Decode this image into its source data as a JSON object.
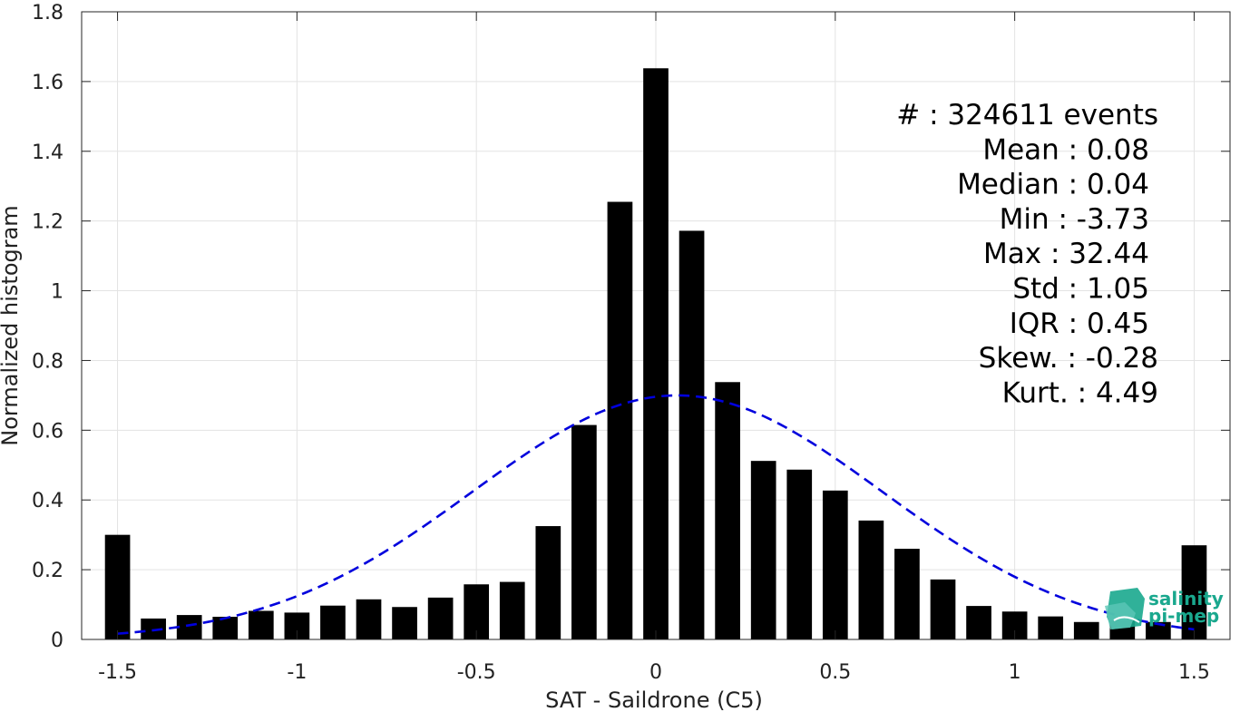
{
  "chart_data": {
    "type": "bar",
    "xlabel": "SAT - Saildrone (C5)",
    "ylabel": "Normalized histogram",
    "xlim": [
      -1.6,
      1.6
    ],
    "ylim": [
      0,
      1.8
    ],
    "grid": true,
    "xticks": [
      -1.5,
      -1,
      -0.5,
      0,
      0.5,
      1,
      1.5
    ],
    "xtick_labels": [
      "-1.5",
      "-1",
      "-0.5",
      "0",
      "0.5",
      "1",
      "1.5"
    ],
    "yticks": [
      0,
      0.2,
      0.4,
      0.6,
      0.8,
      1,
      1.2,
      1.4,
      1.6,
      1.8
    ],
    "ytick_labels": [
      "0",
      "0.2",
      "0.4",
      "0.6",
      "0.8",
      "1",
      "1.2",
      "1.4",
      "1.6",
      "1.8"
    ],
    "bar_width": 0.07,
    "bar_color": "#000000",
    "x": [
      -1.5,
      -1.4,
      -1.3,
      -1.2,
      -1.1,
      -1.0,
      -0.9,
      -0.8,
      -0.7,
      -0.6,
      -0.5,
      -0.4,
      -0.3,
      -0.2,
      -0.1,
      0.0,
      0.1,
      0.2,
      0.3,
      0.4,
      0.5,
      0.6,
      0.7,
      0.8,
      0.9,
      1.0,
      1.1,
      1.2,
      1.3,
      1.4,
      1.5
    ],
    "values": [
      0.3,
      0.06,
      0.07,
      0.065,
      0.082,
      0.077,
      0.097,
      0.115,
      0.093,
      0.12,
      0.158,
      0.165,
      0.325,
      0.615,
      1.255,
      1.638,
      1.172,
      0.738,
      0.512,
      0.487,
      0.427,
      0.341,
      0.26,
      0.172,
      0.096,
      0.08,
      0.066,
      0.05,
      0.056,
      0.05,
      0.27
    ],
    "fit_curve": {
      "type": "normal",
      "mean": 0.06,
      "std": 0.57,
      "color": "#0000dd",
      "style": "dashed",
      "x_range": [
        -1.5,
        1.5
      ]
    },
    "stats": [
      "#  : 324611 events",
      "Mean : 0.08",
      "Median : 0.04",
      "Min : -3.73",
      "Max : 32.44",
      "Std : 1.05",
      "IQR : 0.45",
      "Skew. : -0.28",
      "Kurt. : 4.49"
    ]
  },
  "logo": {
    "line1": "salinity",
    "line2": "pi-mep",
    "color": "#1aa88e"
  }
}
